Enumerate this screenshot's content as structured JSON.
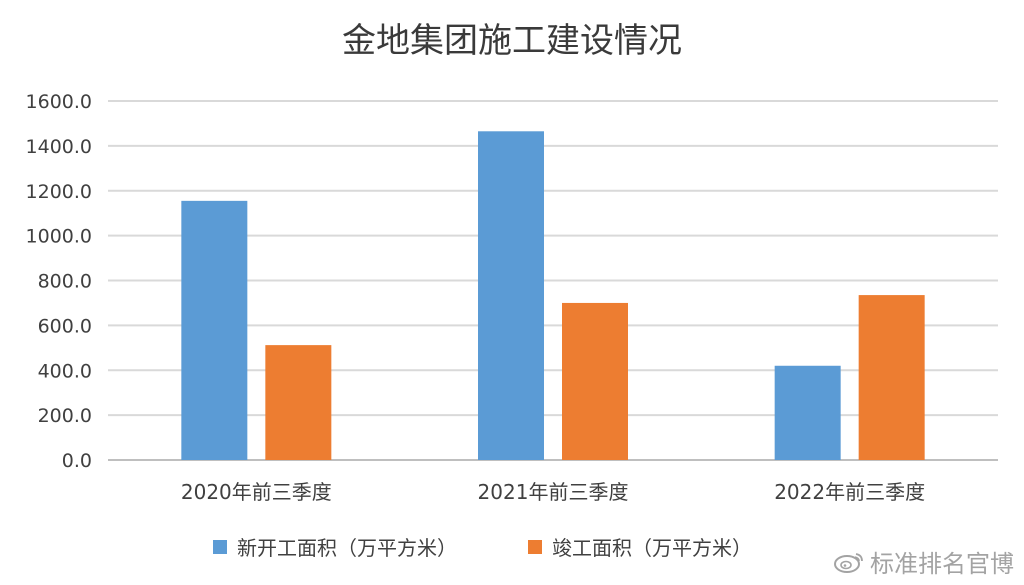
{
  "chart_data": {
    "type": "bar",
    "title": "金地集团施工建设情况",
    "categories": [
      "2020年前三季度",
      "2021年前三季度",
      "2022年前三季度"
    ],
    "series": [
      {
        "name": "新开工面积（万平方米）",
        "color": "#5b9bd5",
        "values": [
          1155,
          1465,
          420
        ]
      },
      {
        "name": "竣工面积（万平方米）",
        "color": "#ed7d31",
        "values": [
          512,
          700,
          735
        ]
      }
    ],
    "ylim": [
      0,
      1600
    ],
    "yticks": [
      "0.0",
      "200.0",
      "400.0",
      "600.0",
      "800.0",
      "1000.0",
      "1200.0",
      "1400.0",
      "1600.0"
    ],
    "grid": true,
    "legend_position": "bottom"
  },
  "watermark": {
    "text": "标准排名官博",
    "icon": "weibo-logo-icon"
  }
}
